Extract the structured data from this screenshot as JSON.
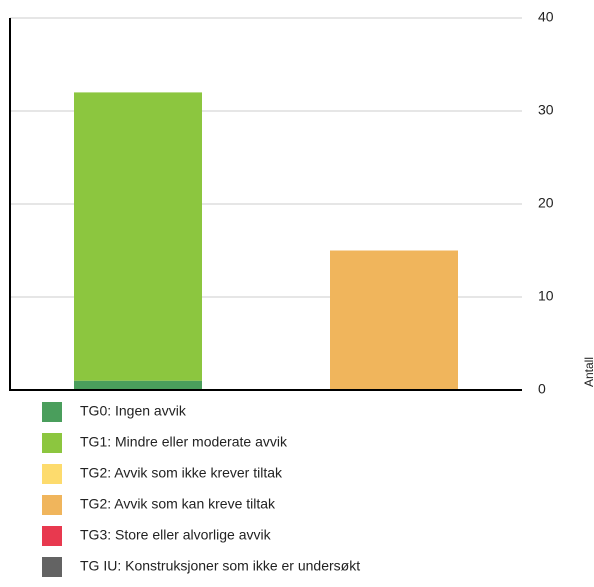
{
  "chart_data": {
    "type": "bar",
    "stacked": true,
    "categories": [
      null,
      null
    ],
    "series": [
      {
        "name": "TG0: Ingen avvik",
        "color": "#4a9e5c",
        "values": [
          1,
          0
        ]
      },
      {
        "name": "TG1: Mindre eller moderate avvik",
        "color": "#8cc63f",
        "values": [
          31,
          0
        ]
      },
      {
        "name": "TG2: Avvik som ikke krever tiltak",
        "color": "#fddb6d",
        "values": [
          0,
          0
        ]
      },
      {
        "name": "TG2: Avvik som kan kreve tiltak",
        "color": "#f0b55c",
        "values": [
          0,
          15
        ]
      },
      {
        "name": "TG3: Store eller alvorlige avvik",
        "color": "#e8394f",
        "values": [
          0,
          0
        ]
      },
      {
        "name": "TG IU: Konstruksjoner som ikke er undersøkt",
        "color": "#636363",
        "values": [
          0,
          0
        ]
      }
    ],
    "y_axis_label": "Antall",
    "ylim": [
      0,
      40
    ],
    "yticks": [
      0,
      10,
      20,
      30,
      40
    ],
    "grid": true,
    "y_axis_side": "right"
  }
}
